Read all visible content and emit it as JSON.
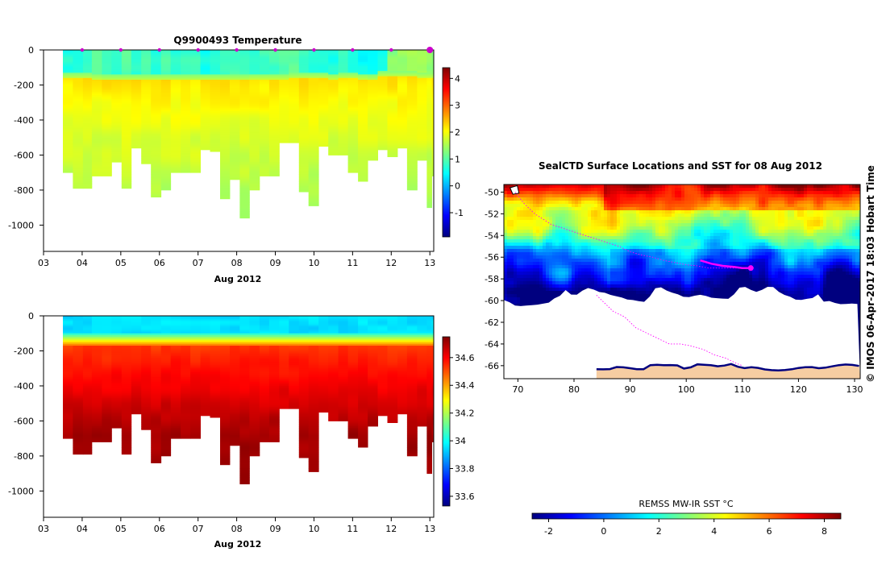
{
  "colors": {
    "jet": [
      "#00007f",
      "#0000ff",
      "#007fff",
      "#00ffff",
      "#7fff7f",
      "#ffff00",
      "#ff7f00",
      "#ff0000",
      "#7f0000"
    ],
    "land": "#f6cda2",
    "track": "#ff00ff",
    "marker": "#cc00cc"
  },
  "chart_data": [
    {
      "type": "heatmap",
      "title": "Q9900493  Temperature",
      "xlabel": "Aug 2012",
      "x_ticks": [
        "03",
        "04",
        "05",
        "06",
        "07",
        "08",
        "09",
        "10",
        "11",
        "12",
        "13"
      ],
      "xlim": [
        3,
        13.1
      ],
      "ylim": [
        -1150,
        0
      ],
      "y_ticks": [
        0,
        -200,
        -400,
        -600,
        -800,
        -1000
      ],
      "colorbar": {
        "min": -1.9,
        "max": 4.4,
        "ticks": [
          -1,
          0,
          1,
          2,
          3,
          4
        ]
      },
      "profile_days": [
        3.5,
        3.76,
        4.02,
        4.25,
        4.51,
        4.76,
        5.02,
        5.27,
        5.53,
        5.78,
        6.04,
        6.29,
        6.55,
        6.8,
        7.06,
        7.31,
        7.57,
        7.82,
        8.08,
        8.33,
        8.59,
        8.84,
        9.1,
        9.35,
        9.61,
        9.86,
        10.12,
        10.37,
        10.63,
        10.88,
        11.14,
        11.39,
        11.65,
        11.9,
        12.16,
        12.41,
        12.67,
        12.92,
        13.05
      ],
      "profile_max_depth": [
        700,
        785,
        785,
        715,
        715,
        640,
        785,
        560,
        650,
        840,
        800,
        700,
        700,
        700,
        570,
        580,
        850,
        740,
        960,
        800,
        720,
        720,
        530,
        530,
        810,
        890,
        550,
        600,
        600,
        700,
        750,
        630,
        570,
        610,
        560,
        800,
        630,
        900,
        720
      ],
      "surface_values": [
        0.7,
        0.7,
        0.8,
        1.0,
        0.8,
        0.7,
        1.0,
        0.7,
        0.9,
        0.6,
        0.9,
        0.7,
        0.8,
        0.8,
        0.6,
        0.7,
        0.8,
        0.9,
        0.8,
        0.7,
        0.9,
        0.9,
        1.0,
        1.1,
        0.9,
        0.7,
        0.6,
        0.6,
        0.8,
        0.6,
        0.5,
        0.5,
        0.6,
        1.3,
        1.4,
        1.5,
        1.5,
        1.4,
        1.3
      ],
      "mixed_layer_depth": [
        140,
        140,
        140,
        145,
        150,
        150,
        150,
        150,
        150,
        150,
        150,
        150,
        150,
        150,
        150,
        150,
        150,
        150,
        150,
        145,
        145,
        145,
        145,
        140,
        140,
        140,
        140,
        145,
        140,
        140,
        145,
        150,
        130,
        130,
        130,
        130,
        135,
        135,
        135
      ],
      "deep_value": 2.0
    },
    {
      "type": "heatmap",
      "title": "",
      "xlabel": "Aug 2012",
      "x_ticks": [
        "03",
        "04",
        "05",
        "06",
        "07",
        "08",
        "09",
        "10",
        "11",
        "12",
        "13"
      ],
      "xlim": [
        3,
        13.1
      ],
      "ylim": [
        -1150,
        0
      ],
      "y_ticks": [
        0,
        -200,
        -400,
        -600,
        -800,
        -1000
      ],
      "colorbar": {
        "min": 33.53,
        "max": 34.75,
        "ticks": [
          33.6,
          33.8,
          34,
          34.2,
          34.4,
          34.6
        ]
      },
      "surface_value": 33.95,
      "halocline_depth": 130,
      "deep_value": 34.71
    },
    {
      "type": "heatmap",
      "title": "SealCTD Surface Locations and SST for 08 Aug 2012",
      "xlabel": "",
      "x_ticks": [
        "70",
        "80",
        "90",
        "100",
        "110",
        "120",
        "130"
      ],
      "y_ticks": [
        "-50",
        "-52",
        "-54",
        "-56",
        "-58",
        "-60",
        "-62",
        "-64",
        "-66"
      ],
      "xlim": [
        67.5,
        131
      ],
      "ylim": [
        -67.2,
        -49.3
      ],
      "colorbar": {
        "label": "REMSS MW-IR SST °C",
        "min": -2.6,
        "max": 8.6,
        "ticks": [
          "-2",
          "0",
          "2",
          "4",
          "6",
          "8"
        ]
      },
      "track_lon": [
        69.5,
        71,
        73,
        76,
        79,
        82,
        85,
        88,
        90,
        92,
        94,
        96,
        98,
        100,
        102,
        104,
        106,
        108,
        110,
        112
      ],
      "track_lat": [
        -50,
        -51,
        -52,
        -53,
        -53.5,
        -54,
        -54.5,
        -55,
        -55.5,
        -55.8,
        -56,
        -56.3,
        -56.5,
        -56.7,
        -56.8,
        -57,
        -57,
        -57,
        -57,
        -57
      ],
      "highlight_lon": [
        102.5,
        104.5,
        106.5,
        108.5,
        110,
        111.5
      ],
      "highlight_lat": [
        -56.3,
        -56.6,
        -56.8,
        -56.9,
        -57,
        -57
      ],
      "south_track_lon": [
        84,
        85,
        87,
        89,
        91,
        93,
        95,
        97,
        99,
        101,
        103,
        105,
        107,
        109,
        110
      ],
      "south_track_lat": [
        -59.5,
        -60,
        -61,
        -61.5,
        -62.5,
        -63,
        -63.5,
        -64,
        -64,
        -64.2,
        -64.5,
        -65,
        -65.3,
        -65.8,
        -66
      ]
    }
  ],
  "watermark": "© IMOS 06-Apr-2017 18:03 Hobart Time"
}
